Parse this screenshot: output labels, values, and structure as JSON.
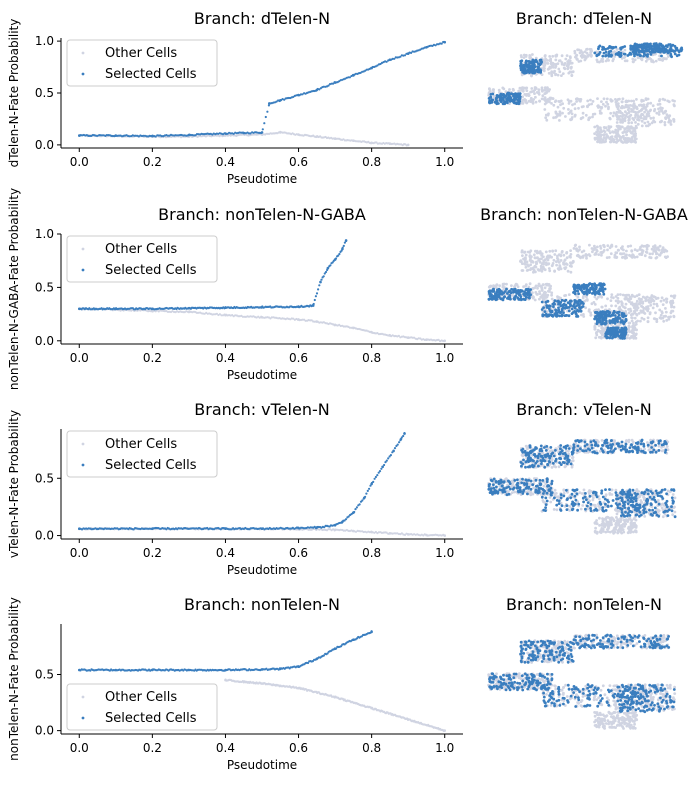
{
  "colors": {
    "selected": "#3a7ebf",
    "other": "#d0d4e2",
    "axis": "#000000"
  },
  "legend_labels": {
    "other": "Other Cells",
    "selected": "Selected Cells"
  },
  "chart_data": [
    {
      "type": "scatter",
      "title": "Branch: dTelen-N",
      "xlabel": "Pseudotime",
      "ylabel": "dTelen-N-Fate Probability",
      "xlim": [
        -0.05,
        1.05
      ],
      "ylim": [
        -0.03,
        1.03
      ],
      "xticks": [
        "0.0",
        "0.2",
        "0.4",
        "0.6",
        "0.8",
        "1.0"
      ],
      "yticks": [
        "0.0",
        "0.5",
        "1.0"
      ],
      "legend": "upper-left",
      "series": [
        {
          "name": "Selected Cells",
          "x": [
            0.0,
            0.1,
            0.2,
            0.3,
            0.4,
            0.45,
            0.5,
            0.52,
            0.55,
            0.6,
            0.65,
            0.7,
            0.75,
            0.8,
            0.85,
            0.9,
            0.95,
            1.0
          ],
          "y": [
            0.09,
            0.09,
            0.085,
            0.095,
            0.11,
            0.115,
            0.12,
            0.4,
            0.43,
            0.48,
            0.53,
            0.6,
            0.67,
            0.74,
            0.82,
            0.88,
            0.94,
            0.99
          ]
        },
        {
          "name": "Other Cells",
          "x": [
            0.0,
            0.2,
            0.3,
            0.4,
            0.5,
            0.55,
            0.6,
            0.65,
            0.7,
            0.75,
            0.8,
            0.85,
            0.9
          ],
          "y": [
            0.09,
            0.08,
            0.08,
            0.09,
            0.1,
            0.12,
            0.1,
            0.08,
            0.06,
            0.04,
            0.02,
            0.01,
            0.0
          ]
        }
      ],
      "umap": {
        "title": "Branch: dTelen-N",
        "highlight": "top"
      }
    },
    {
      "type": "scatter",
      "title": "Branch: nonTelen-N-GABA",
      "xlabel": "Pseudotime",
      "ylabel": "nonTelen-N-GABA-Fate Probability",
      "xlim": [
        -0.05,
        1.05
      ],
      "ylim": [
        -0.03,
        1.0
      ],
      "xticks": [
        "0.0",
        "0.2",
        "0.4",
        "0.6",
        "0.8",
        "1.0"
      ],
      "yticks": [
        "0.0",
        "0.5",
        "1.0"
      ],
      "legend": "upper-left",
      "series": [
        {
          "name": "Selected Cells",
          "x": [
            0.0,
            0.1,
            0.2,
            0.3,
            0.4,
            0.5,
            0.6,
            0.64,
            0.66,
            0.68,
            0.7,
            0.72,
            0.73
          ],
          "y": [
            0.3,
            0.3,
            0.3,
            0.305,
            0.31,
            0.315,
            0.32,
            0.33,
            0.55,
            0.68,
            0.76,
            0.86,
            0.94
          ]
        },
        {
          "name": "Other Cells",
          "x": [
            0.0,
            0.2,
            0.3,
            0.4,
            0.5,
            0.6,
            0.65,
            0.7,
            0.75,
            0.8,
            0.85,
            0.9,
            0.95,
            1.0
          ],
          "y": [
            0.3,
            0.28,
            0.27,
            0.24,
            0.22,
            0.2,
            0.18,
            0.15,
            0.12,
            0.08,
            0.05,
            0.03,
            0.01,
            0.0
          ]
        }
      ],
      "umap": {
        "title": "Branch: nonTelen-N-GABA",
        "highlight": "bottom-left"
      }
    },
    {
      "type": "scatter",
      "title": "Branch: vTelen-N",
      "xlabel": "Pseudotime",
      "ylabel": "vTelen-N-Fate Probability",
      "xlim": [
        -0.05,
        1.05
      ],
      "ylim": [
        -0.03,
        0.93
      ],
      "xticks": [
        "0.0",
        "0.2",
        "0.4",
        "0.6",
        "0.8",
        "1.0"
      ],
      "yticks": [
        "0.0",
        "0.5"
      ],
      "legend": "upper-left",
      "series": [
        {
          "name": "Selected Cells",
          "x": [
            0.0,
            0.2,
            0.4,
            0.5,
            0.6,
            0.65,
            0.7,
            0.72,
            0.75,
            0.78,
            0.8,
            0.83,
            0.86,
            0.88,
            0.89
          ],
          "y": [
            0.06,
            0.06,
            0.06,
            0.06,
            0.065,
            0.07,
            0.09,
            0.12,
            0.2,
            0.33,
            0.45,
            0.6,
            0.74,
            0.84,
            0.89
          ]
        },
        {
          "name": "Other Cells",
          "x": [
            0.0,
            0.4,
            0.6,
            0.7,
            0.75,
            0.8,
            0.85,
            0.9,
            0.95,
            1.0
          ],
          "y": [
            0.06,
            0.06,
            0.055,
            0.05,
            0.04,
            0.03,
            0.02,
            0.01,
            0.005,
            0.0
          ]
        }
      ],
      "umap": {
        "title": "Branch: vTelen-N",
        "highlight": "most"
      }
    },
    {
      "type": "scatter",
      "title": "Branch: nonTelen-N",
      "xlabel": "Pseudotime",
      "ylabel": "nonTelen-N-Fate Probability",
      "xlim": [
        -0.05,
        1.05
      ],
      "ylim": [
        -0.03,
        0.95
      ],
      "xticks": [
        "0.0",
        "0.2",
        "0.4",
        "0.6",
        "0.8",
        "1.0"
      ],
      "yticks": [
        "0.0",
        "0.5"
      ],
      "legend": "lower-left",
      "series": [
        {
          "name": "Selected Cells",
          "x": [
            0.0,
            0.1,
            0.2,
            0.3,
            0.4,
            0.5,
            0.55,
            0.6,
            0.65,
            0.7,
            0.75,
            0.8
          ],
          "y": [
            0.54,
            0.54,
            0.54,
            0.54,
            0.54,
            0.545,
            0.55,
            0.57,
            0.64,
            0.73,
            0.81,
            0.88
          ]
        },
        {
          "name": "Other Cells",
          "x": [
            0.4,
            0.5,
            0.6,
            0.7,
            0.8,
            0.9,
            1.0
          ],
          "y": [
            0.45,
            0.42,
            0.38,
            0.3,
            0.2,
            0.1,
            0.0
          ]
        }
      ],
      "umap": {
        "title": "Branch: nonTelen-N",
        "highlight": "most"
      }
    }
  ]
}
